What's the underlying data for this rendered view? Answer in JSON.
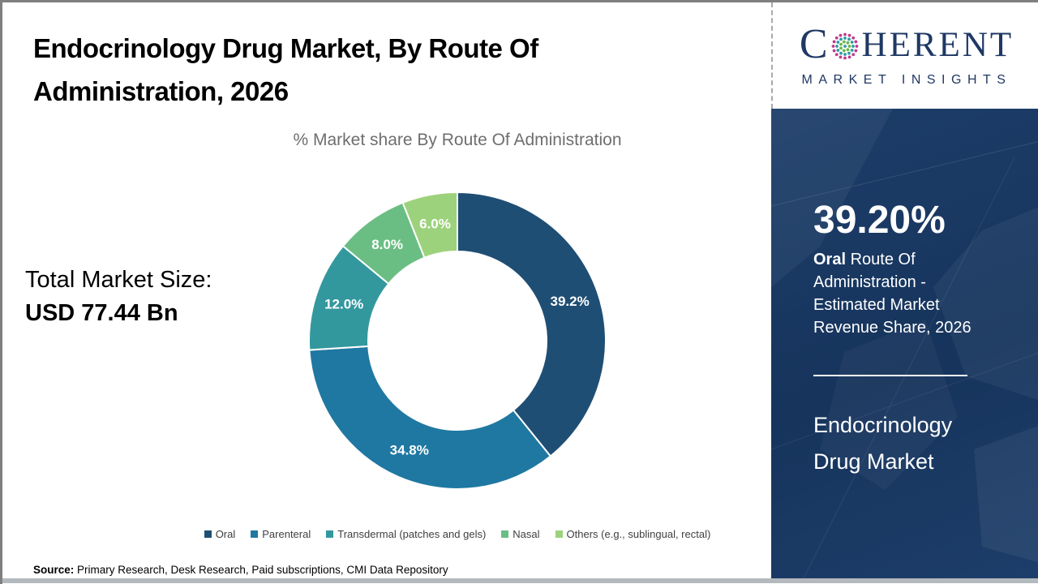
{
  "header": {
    "title": "Endocrinology Drug Market, By Route Of Administration, 2026"
  },
  "logo": {
    "letter_c": "C",
    "word_rest": "HERENT",
    "tagline": "MARKET INSIGHTS",
    "navy": "#1F3864",
    "dot_ring_colors": [
      "#C23A8C",
      "#2D9BA6",
      "#6CB845"
    ]
  },
  "main": {
    "chart_title": "% Market share By Route Of Administration",
    "total_label": "Total Market Size:",
    "total_value": "USD 77.44 Bn",
    "source_label": "Source:",
    "source_text": " Primary Research, Desk Research, Paid subscriptions, CMI Data Repository"
  },
  "chart_data": {
    "type": "pie",
    "subtype": "donut",
    "title": "% Market share By Route Of Administration",
    "start_angle_deg": 0,
    "direction": "clockwise",
    "inner_radius_ratio": 0.6,
    "legend_position": "bottom",
    "categories": [
      "Oral",
      "Parenteral",
      "Transdermal (patches and gels)",
      "Nasal",
      "Others (e.g., sublingual, rectal)"
    ],
    "values": [
      39.2,
      34.8,
      12.0,
      8.0,
      6.0
    ],
    "labels": [
      "39.2%",
      "34.8%",
      "12.0%",
      "8.0%",
      "6.0%"
    ],
    "colors": [
      "#1F4E74",
      "#1F78A1",
      "#33989E",
      "#6BBE83",
      "#9DD27C"
    ]
  },
  "sidebar": {
    "bg_color": "#1D3E6A",
    "stat_value": "39.20%",
    "stat_desc_bold": "Oral",
    "stat_desc_rest": " Route Of Administration - Estimated Market Revenue Share, 2026",
    "market_name": "Endocrinology Drug Market"
  }
}
